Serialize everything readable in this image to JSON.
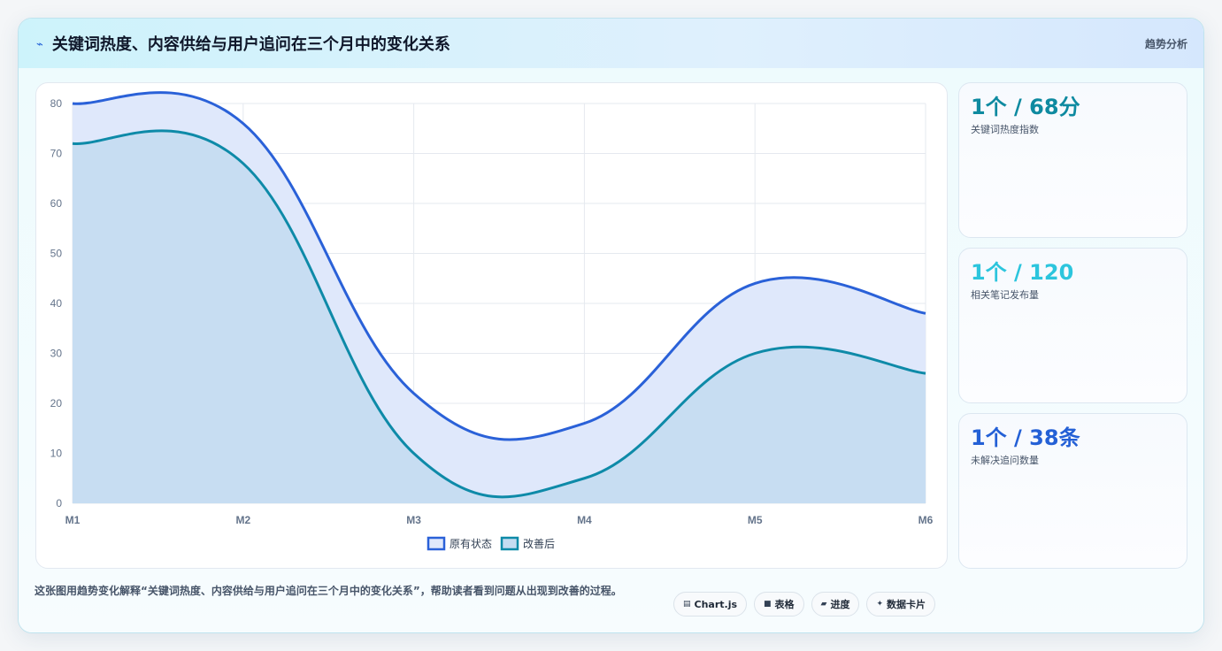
{
  "header": {
    "title": "关键词热度、内容供给与用户追问在三个月中的变化关系",
    "tag": "趋势分析",
    "icon": "trend-icon"
  },
  "kpis": [
    {
      "value": "1个 / 68分",
      "label": "关键词热度指数",
      "color": "#0e8aa0"
    },
    {
      "value": "1个 / 120",
      "label": "相关笔记发布量",
      "color": "#2cc5dd"
    },
    {
      "value": "1个 / 38条",
      "label": "未解决追问数量",
      "color": "#2460d6"
    }
  ],
  "footer": {
    "description": "这张图用趋势变化解释“关键词热度、内容供给与用户追问在三个月中的变化关系”，帮助读者看到问题从出现到改善的过程。"
  },
  "chips": [
    {
      "icon": "chart-icon",
      "glyph": "▤",
      "label": "Chart.js"
    },
    {
      "icon": "table-icon",
      "glyph": "■",
      "label": "表格"
    },
    {
      "icon": "progress-icon",
      "glyph": "▰",
      "label": "进度"
    },
    {
      "icon": "data-card-icon",
      "glyph": "✦",
      "label": "数据卡片"
    }
  ],
  "chart_data": {
    "type": "area",
    "categories": [
      "M1",
      "M2",
      "M3",
      "M4",
      "M5",
      "M6"
    ],
    "ylim": [
      0,
      80
    ],
    "yticks": [
      0,
      10,
      20,
      30,
      40,
      50,
      60,
      70,
      80
    ],
    "grid": true,
    "legend_position": "bottom",
    "series": [
      {
        "name": "原有状态",
        "values": [
          80,
          76,
          22,
          16,
          44,
          38
        ],
        "color": "#2a61d8",
        "fill": "#dfe8fb"
      },
      {
        "name": "改善后",
        "values": [
          72,
          68,
          10,
          5,
          30,
          26
        ],
        "color": "#0e8aa8",
        "fill": "#c5dcf1"
      }
    ]
  }
}
